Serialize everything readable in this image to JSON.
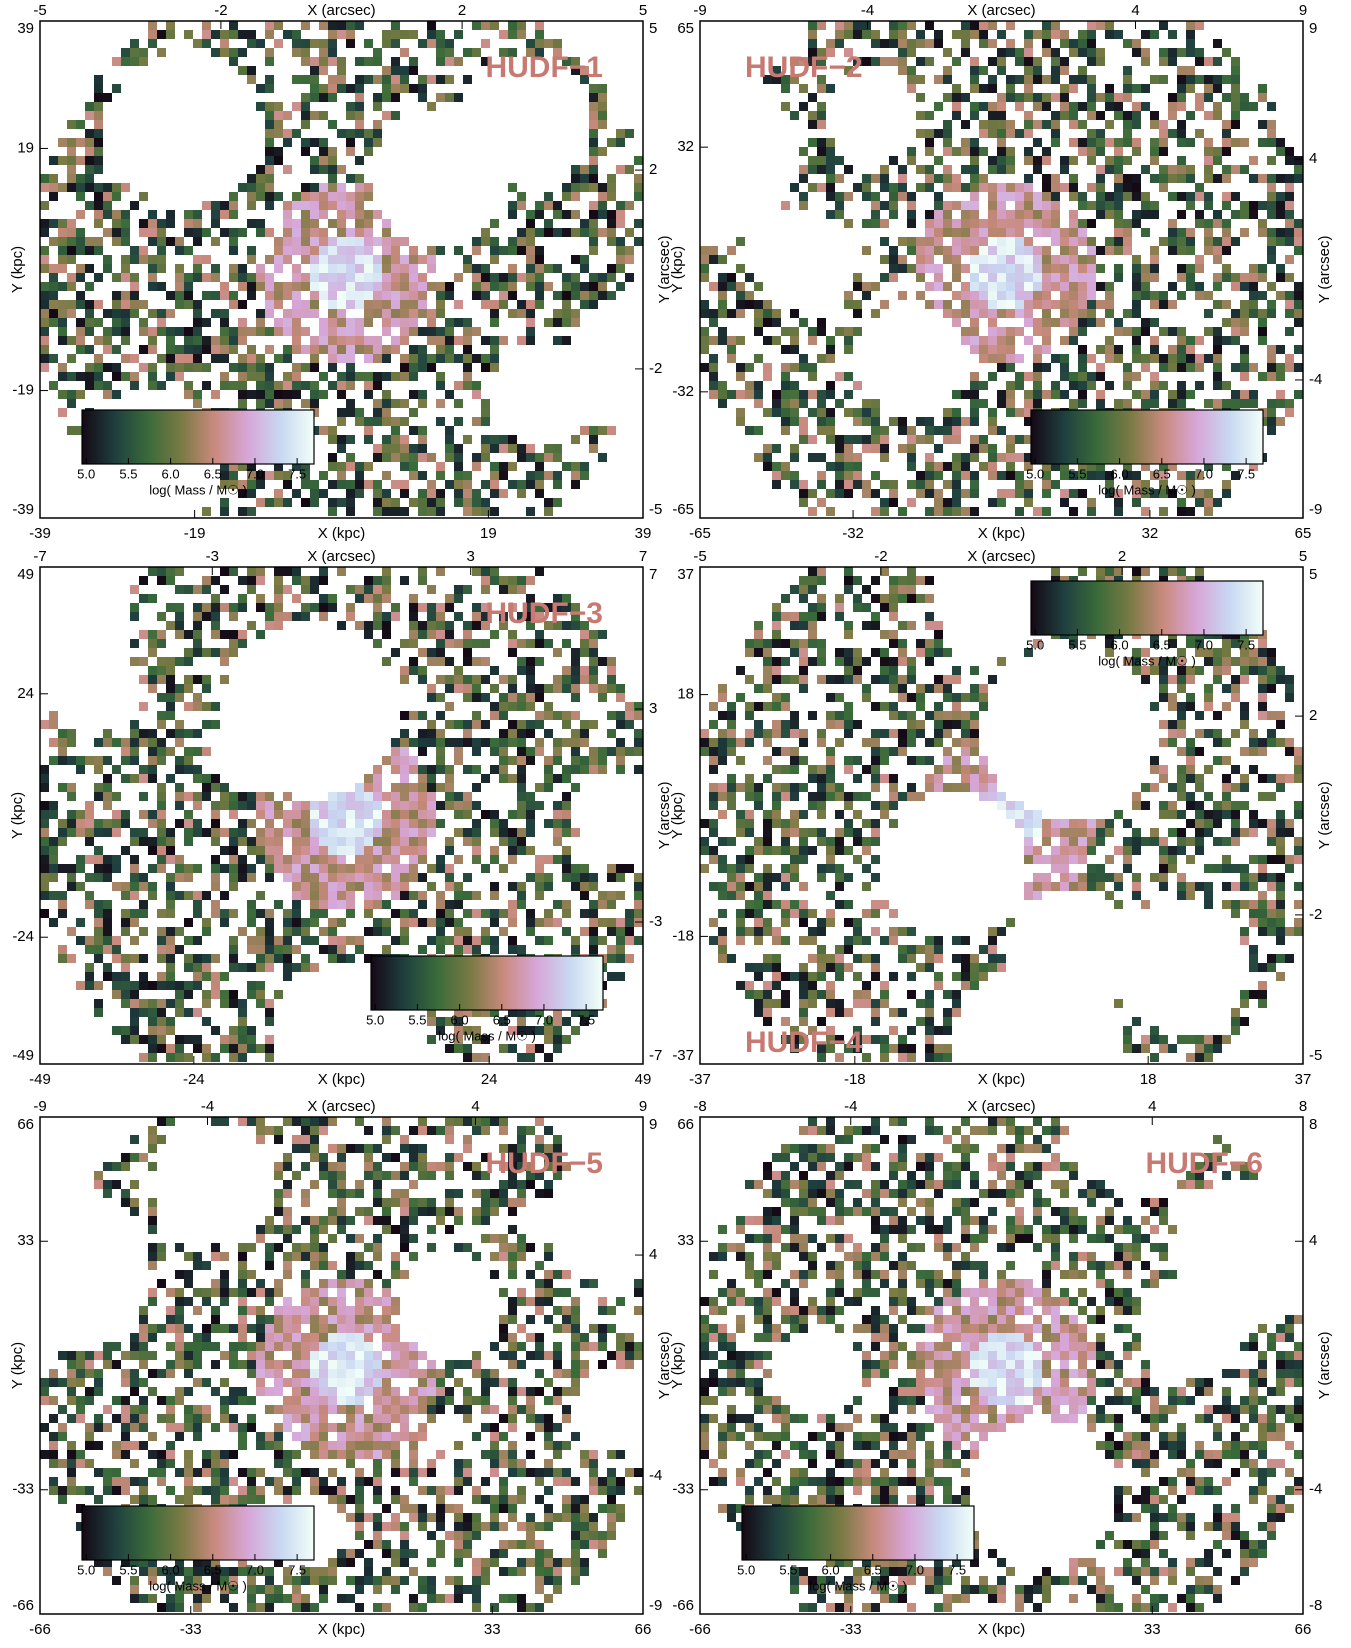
{
  "chart_data": [
    {
      "type": "heatmap",
      "title": "HUDF−1",
      "title_corner": "top-right",
      "title_color": "#c87a72",
      "xlabel": "X (kpc)",
      "x2label": "X (arcsec)",
      "ylabel": "Y (kpc)",
      "y2label": "Y (arcsec)",
      "xlim": [
        -39,
        39
      ],
      "xticks": [
        -39,
        -19,
        19,
        39
      ],
      "x2lim": [
        -5,
        5
      ],
      "x2ticks": [
        -5,
        -2,
        2,
        5
      ],
      "ylim": [
        -39,
        39
      ],
      "yticks": [
        -39,
        -19,
        19,
        39
      ],
      "y2lim": [
        -5,
        5
      ],
      "y2ticks": [
        -5,
        -2,
        2,
        5
      ],
      "colorbar_corner": "bottom-left",
      "colorbar": {
        "label": "log( Mass / M☉ )",
        "clim": [
          4.95,
          7.7
        ],
        "ticks": [
          {
            "value": 5,
            "label": "5.0"
          },
          5.5,
          {
            "value": 6,
            "label": "6.0"
          },
          6.5,
          {
            "value": 7,
            "label": "7.0"
          },
          7.5
        ]
      },
      "colormap": [
        "#140814",
        "#1f3f3f",
        "#3a6b3a",
        "#7a7a44",
        "#c98a7e",
        "#d7a6d8",
        "#c8d8f2",
        "#f2fff8"
      ]
    },
    {
      "type": "heatmap",
      "title": "HUDF−2",
      "title_corner": "top-left",
      "title_color": "#c87a72",
      "xlabel": "X (kpc)",
      "x2label": "X (arcsec)",
      "ylabel": "Y (kpc)",
      "y2label": "Y (arcsec)",
      "xlim": [
        -65,
        65
      ],
      "xticks": [
        -65,
        -32,
        32,
        65
      ],
      "x2lim": [
        -9,
        9
      ],
      "x2ticks": [
        -9,
        -4,
        4,
        9
      ],
      "ylim": [
        -65,
        65
      ],
      "yticks": [
        -65,
        -32,
        32,
        65
      ],
      "y2lim": [
        -9,
        9
      ],
      "y2ticks": [
        -9,
        -4,
        4,
        9
      ],
      "colorbar_corner": "bottom-right",
      "colorbar": {
        "label": "log( Mass / M☉ )",
        "clim": [
          4.95,
          7.7
        ],
        "ticks": [
          {
            "value": 5,
            "label": "5.0"
          },
          5.5,
          {
            "value": 6,
            "label": "6.0"
          },
          6.5,
          {
            "value": 7,
            "label": "7.0"
          },
          7.5
        ]
      },
      "colormap": [
        "#140814",
        "#1f3f3f",
        "#3a6b3a",
        "#7a7a44",
        "#c98a7e",
        "#d7a6d8",
        "#c8d8f2",
        "#f2fff8"
      ]
    },
    {
      "type": "heatmap",
      "title": "HUDF−3",
      "title_corner": "top-right",
      "title_color": "#c87a72",
      "xlabel": "X (kpc)",
      "x2label": "X (arcsec)",
      "ylabel": "Y (kpc)",
      "y2label": "Y (arcsec)",
      "xlim": [
        -49,
        49
      ],
      "xticks": [
        -49,
        -24,
        24,
        49
      ],
      "x2lim": [
        -7,
        7
      ],
      "x2ticks": [
        -7,
        -3,
        3,
        7
      ],
      "ylim": [
        -49,
        49
      ],
      "yticks": [
        -49,
        -24,
        24,
        49
      ],
      "y2lim": [
        -7,
        7
      ],
      "y2ticks": [
        -7,
        -3,
        3,
        7
      ],
      "colorbar_corner": "bottom-right",
      "colorbar": {
        "label": "log( Mass / M☉ )",
        "clim": [
          4.95,
          7.7
        ],
        "ticks": [
          {
            "value": 5,
            "label": "5.0"
          },
          5.5,
          {
            "value": 6,
            "label": "6.0"
          },
          6.5,
          {
            "value": 7,
            "label": "7.0"
          },
          7.5
        ]
      },
      "colormap": [
        "#140814",
        "#1f3f3f",
        "#3a6b3a",
        "#7a7a44",
        "#c98a7e",
        "#d7a6d8",
        "#c8d8f2",
        "#f2fff8"
      ]
    },
    {
      "type": "heatmap",
      "title": "HUDF−4",
      "title_corner": "bottom-left",
      "title_color": "#c87a72",
      "xlabel": "X (kpc)",
      "x2label": "X (arcsec)",
      "ylabel": "Y (kpc)",
      "y2label": "Y (arcsec)",
      "xlim": [
        -37,
        37
      ],
      "xticks": [
        -37,
        -18,
        18,
        37
      ],
      "x2lim": [
        -5,
        5
      ],
      "x2ticks": [
        -5,
        -2,
        2,
        5
      ],
      "ylim": [
        -37,
        37
      ],
      "yticks": [
        -37,
        -18,
        18,
        37
      ],
      "y2lim": [
        -5,
        5
      ],
      "y2ticks": [
        -5,
        -2,
        2,
        5
      ],
      "colorbar_corner": "top-right",
      "colorbar": {
        "label": "log( Mass / M☉ )",
        "clim": [
          4.95,
          7.7
        ],
        "ticks": [
          {
            "value": 5,
            "label": "5.0"
          },
          5.5,
          {
            "value": 6,
            "label": "6.0"
          },
          6.5,
          {
            "value": 7,
            "label": "7.0"
          },
          7.5
        ]
      },
      "colormap": [
        "#140814",
        "#1f3f3f",
        "#3a6b3a",
        "#7a7a44",
        "#c98a7e",
        "#d7a6d8",
        "#c8d8f2",
        "#f2fff8"
      ]
    },
    {
      "type": "heatmap",
      "title": "HUDF−5",
      "title_corner": "top-right",
      "title_color": "#c87a72",
      "xlabel": "X (kpc)",
      "x2label": "X (arcsec)",
      "ylabel": "Y (kpc)",
      "y2label": "Y (arcsec)",
      "xlim": [
        -66,
        66
      ],
      "xticks": [
        -66,
        -33,
        33,
        66
      ],
      "x2lim": [
        -9,
        9
      ],
      "x2ticks": [
        -9,
        -4,
        4,
        9
      ],
      "ylim": [
        -66,
        66
      ],
      "yticks": [
        -66,
        -33,
        33,
        66
      ],
      "y2lim": [
        -9,
        9
      ],
      "y2ticks": [
        -9,
        -4,
        4,
        9
      ],
      "colorbar_corner": "bottom-left",
      "colorbar": {
        "label": "log( Mass / M☉ )",
        "clim": [
          4.95,
          7.7
        ],
        "ticks": [
          {
            "value": 5,
            "label": "5.0"
          },
          5.5,
          {
            "value": 6,
            "label": "6.0"
          },
          6.5,
          {
            "value": 7,
            "label": "7.0"
          },
          7.5
        ]
      },
      "colormap": [
        "#140814",
        "#1f3f3f",
        "#3a6b3a",
        "#7a7a44",
        "#c98a7e",
        "#d7a6d8",
        "#c8d8f2",
        "#f2fff8"
      ]
    },
    {
      "type": "heatmap",
      "title": "HUDF−6",
      "title_corner": "top-right",
      "title_color": "#c87a72",
      "xlabel": "X (kpc)",
      "x2label": "X (arcsec)",
      "ylabel": "Y (kpc)",
      "y2label": "Y (arcsec)",
      "xlim": [
        -66,
        66
      ],
      "xticks": [
        -66,
        -33,
        33,
        66
      ],
      "x2lim": [
        -8,
        8
      ],
      "x2ticks": [
        -8,
        -4,
        4,
        8
      ],
      "ylim": [
        -66,
        66
      ],
      "yticks": [
        -66,
        -33,
        33,
        66
      ],
      "y2lim": [
        -8,
        8
      ],
      "y2ticks": [
        -8,
        -4,
        4,
        8
      ],
      "colorbar_corner": "bottom-left",
      "colorbar": {
        "label": "log( Mass / M☉ )",
        "clim": [
          4.95,
          7.7
        ],
        "ticks": [
          {
            "value": 5,
            "label": "5.0"
          },
          5.5,
          {
            "value": 6,
            "label": "6.0"
          },
          6.5,
          {
            "value": 7,
            "label": "7.0"
          },
          7.5
        ]
      },
      "colormap": [
        "#140814",
        "#1f3f3f",
        "#3a6b3a",
        "#7a7a44",
        "#c98a7e",
        "#d7a6d8",
        "#c8d8f2",
        "#f2fff8"
      ]
    }
  ]
}
